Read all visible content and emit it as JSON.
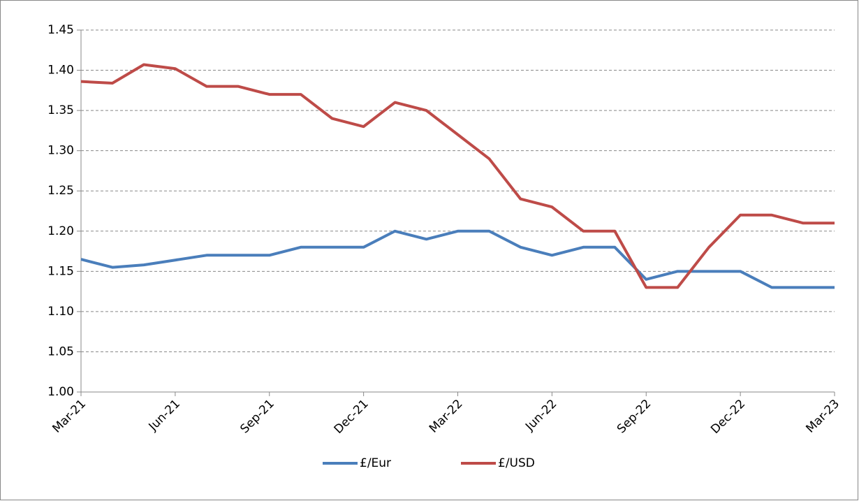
{
  "chart_data": {
    "type": "line",
    "categories": [
      "Mar-21",
      null,
      null,
      "Jun-21",
      null,
      null,
      "Sep-21",
      null,
      null,
      "Dec-21",
      null,
      null,
      "Mar-22",
      null,
      null,
      "Jun-22",
      null,
      null,
      "Sep-22",
      null,
      null,
      "Dec-22",
      null,
      null,
      "Mar-23"
    ],
    "series": [
      {
        "name": "£/Eur",
        "color": "#4a7ebb",
        "values": [
          1.165,
          1.155,
          1.158,
          1.164,
          1.17,
          1.17,
          1.17,
          1.18,
          1.18,
          1.18,
          1.2,
          1.19,
          1.2,
          1.2,
          1.18,
          1.17,
          1.18,
          1.18,
          1.14,
          1.15,
          1.15,
          1.15,
          1.13,
          1.13,
          1.13
        ]
      },
      {
        "name": "£/USD",
        "color": "#be4b48",
        "values": [
          1.386,
          1.384,
          1.407,
          1.402,
          1.38,
          1.38,
          1.37,
          1.37,
          1.34,
          1.33,
          1.36,
          1.35,
          1.32,
          1.29,
          1.24,
          1.23,
          1.2,
          1.2,
          1.13,
          1.13,
          1.18,
          1.22,
          1.22,
          1.21,
          1.21
        ]
      }
    ],
    "ylim": [
      1.0,
      1.45
    ],
    "yticks": [
      {
        "value": 1.0,
        "label": "1.00"
      },
      1.05,
      {
        "value": 1.1,
        "label": "1.10"
      },
      1.15,
      {
        "value": 1.2,
        "label": "1.20"
      },
      1.25,
      {
        "value": 1.3,
        "label": "1.30"
      },
      1.35,
      {
        "value": 1.4,
        "label": "1.40"
      },
      1.45
    ],
    "grid": true,
    "legend": "bottom"
  }
}
